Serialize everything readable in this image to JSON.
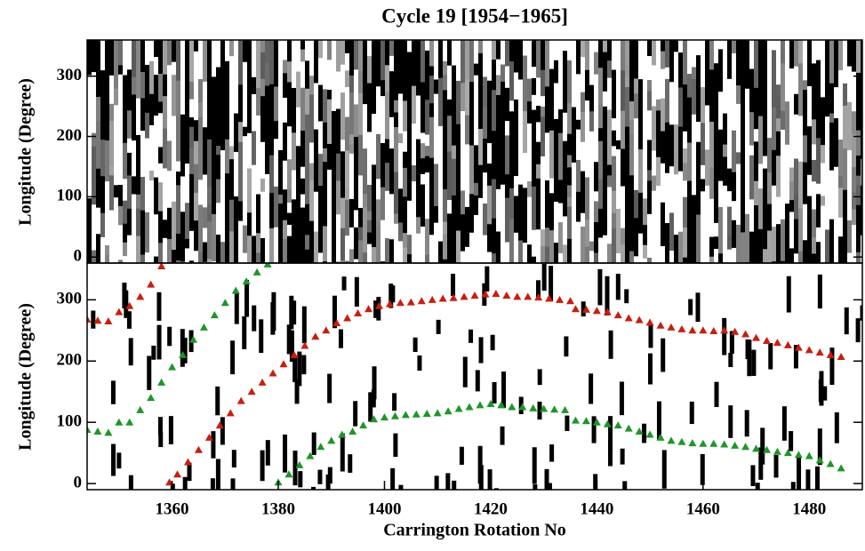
{
  "chart_data": [
    {
      "type": "heatmap",
      "title": "Cycle 19 [1954−1965]",
      "ylabel": "Longitude (Degree)",
      "xlim": [
        1344,
        1490
      ],
      "ylim": [
        -10,
        360
      ],
      "yticks": [
        0,
        100,
        200,
        300
      ]
    },
    {
      "type": "scatter",
      "ylabel": "Longitude (Degree)",
      "xlabel": "Carrington Rotation No",
      "xlim": [
        1344,
        1490
      ],
      "xticks": [
        1360,
        1380,
        1400,
        1420,
        1440,
        1460,
        1480
      ],
      "ylim": [
        -10,
        360
      ],
      "yticks": [
        0,
        100,
        200,
        300
      ],
      "series": [
        {
          "color": "#c81e0f",
          "x": [
            1344,
            1346,
            1348,
            1350,
            1352,
            1354,
            1356,
            1358,
            1359.5,
            1361,
            1363,
            1365,
            1367,
            1369,
            1371,
            1373,
            1375,
            1377,
            1379,
            1381,
            1383,
            1385,
            1387,
            1389,
            1391,
            1393,
            1395,
            1397,
            1399,
            1401,
            1403,
            1405,
            1407,
            1409,
            1411,
            1413,
            1415,
            1417,
            1419,
            1421,
            1423,
            1425,
            1427,
            1429,
            1431,
            1433,
            1435,
            1436,
            1438,
            1440,
            1442,
            1444,
            1446,
            1448,
            1450,
            1452,
            1454,
            1456,
            1458,
            1460,
            1462,
            1464,
            1466,
            1468,
            1470,
            1472,
            1474,
            1476,
            1478,
            1480,
            1482,
            1484,
            1486
          ],
          "values": [
            268,
            266,
            265,
            280,
            290,
            305,
            325,
            355,
            2,
            15,
            35,
            55,
            75,
            95,
            115,
            135,
            150,
            165,
            180,
            195,
            210,
            225,
            240,
            250,
            262,
            270,
            278,
            285,
            290,
            293,
            295,
            296,
            298,
            300,
            302,
            303,
            305,
            307,
            309,
            310,
            307,
            305,
            305,
            304,
            302,
            300,
            298,
            285,
            284,
            282,
            280,
            275,
            270,
            267,
            263,
            258,
            255,
            252,
            250,
            250,
            249,
            250,
            248,
            244,
            238,
            233,
            230,
            226,
            222,
            218,
            214,
            210,
            207
          ]
        },
        {
          "color": "#1e9628",
          "x": [
            1344,
            1346,
            1348,
            1350,
            1352,
            1354,
            1356,
            1358,
            1360,
            1362,
            1364,
            1366,
            1368,
            1370,
            1372,
            1374,
            1376,
            1378,
            1380,
            1382,
            1384,
            1386,
            1388,
            1390,
            1392,
            1394,
            1396,
            1398,
            1400,
            1402,
            1404,
            1406,
            1408,
            1410,
            1412,
            1414,
            1416,
            1418,
            1420,
            1422,
            1424,
            1426,
            1428,
            1430,
            1432,
            1434,
            1436,
            1438,
            1440,
            1442,
            1444,
            1446,
            1448,
            1450,
            1452,
            1454,
            1456,
            1458,
            1460,
            1462,
            1464,
            1466,
            1468,
            1470,
            1472,
            1474,
            1476,
            1478,
            1480,
            1482,
            1484,
            1486
          ],
          "values": [
            88,
            85,
            83,
            100,
            100,
            120,
            140,
            165,
            190,
            210,
            235,
            255,
            275,
            295,
            315,
            330,
            345,
            358,
            2,
            15,
            30,
            45,
            60,
            70,
            80,
            85,
            95,
            105,
            108,
            110,
            112,
            113,
            114,
            115,
            118,
            122,
            125,
            128,
            130,
            128,
            125,
            125,
            123,
            122,
            121,
            120,
            103,
            102,
            100,
            97,
            95,
            90,
            85,
            80,
            75,
            70,
            68,
            66,
            65,
            65,
            64,
            62,
            60,
            57,
            55,
            52,
            50,
            47,
            45,
            38,
            32,
            25
          ]
        }
      ]
    }
  ]
}
